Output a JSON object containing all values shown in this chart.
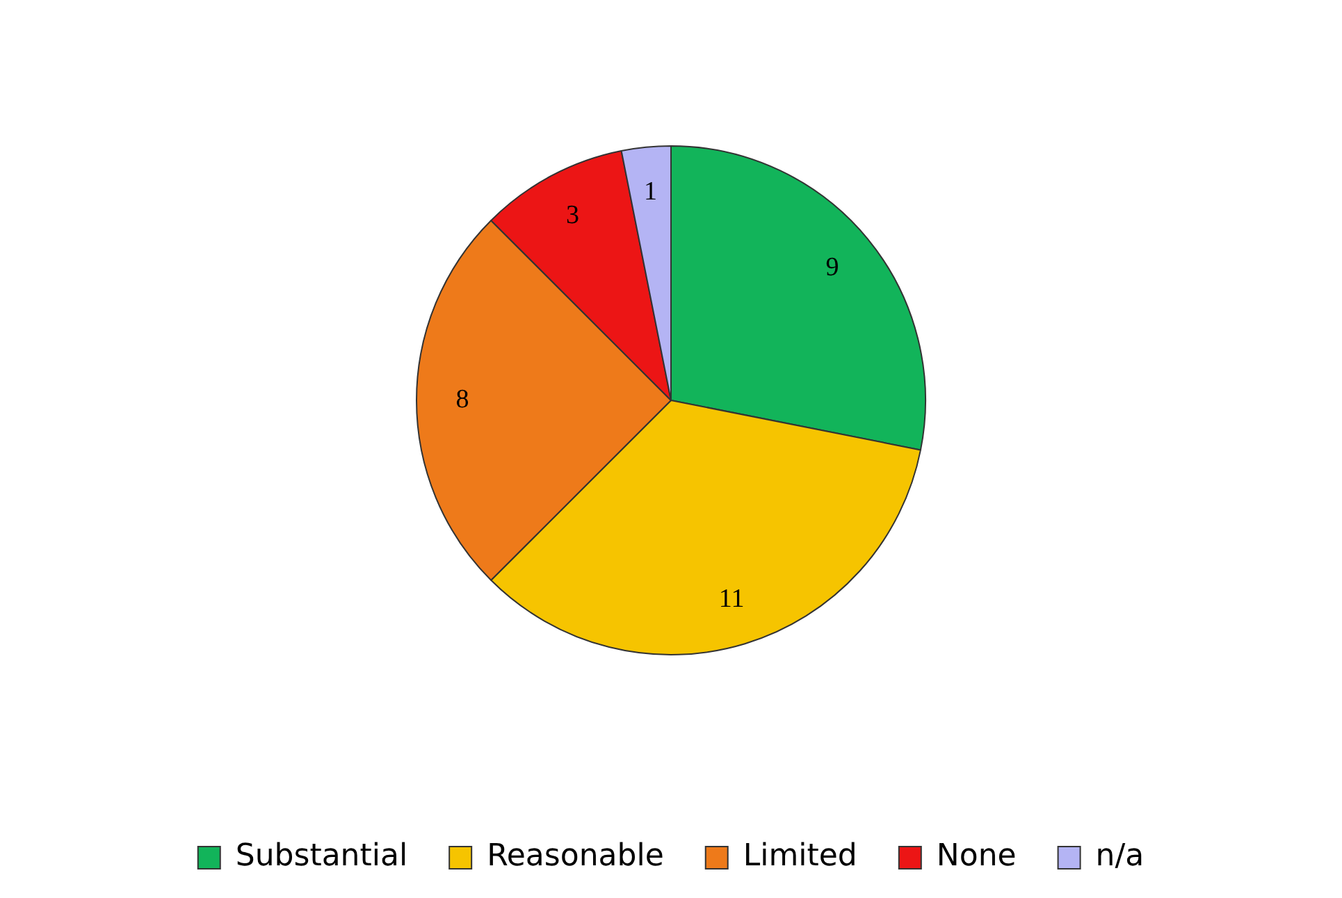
{
  "chart_data": {
    "type": "pie",
    "categories": [
      "Substantial",
      "Reasonable",
      "Limited",
      "None",
      "n/a"
    ],
    "values": [
      9,
      11,
      8,
      3,
      1
    ],
    "colors": [
      "#12b45a",
      "#f6c400",
      "#ee7a1a",
      "#ec1515",
      "#b4b4f4"
    ],
    "data_labels": true,
    "legend": "bottom"
  }
}
